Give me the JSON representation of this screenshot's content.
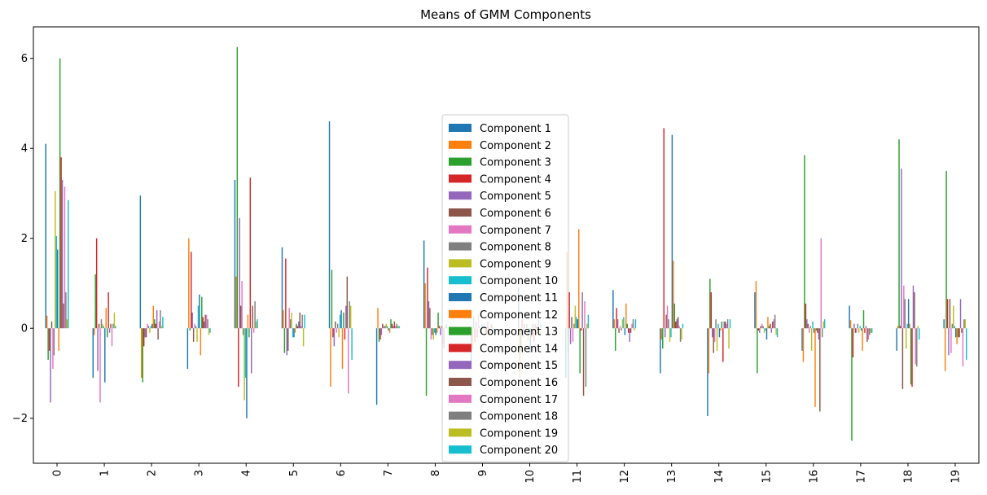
{
  "chart_data": {
    "type": "bar",
    "title": "Means of GMM Components",
    "xlabel": "",
    "ylabel": "",
    "categories": [
      "0",
      "1",
      "2",
      "3",
      "4",
      "5",
      "6",
      "7",
      "8",
      "9",
      "10",
      "11",
      "12",
      "13",
      "14",
      "15",
      "16",
      "17",
      "18",
      "19"
    ],
    "ylim": [
      -3.0,
      6.7
    ],
    "yticks": [
      -2,
      0,
      2,
      4,
      6
    ],
    "grid": false,
    "legend_position": "center",
    "colors": [
      "#1f77b4",
      "#ff7f0e",
      "#2ca02c",
      "#d62728",
      "#9467bd",
      "#8c564b",
      "#e377c2",
      "#7f7f7f",
      "#bcbd22",
      "#17becf"
    ],
    "series": [
      {
        "name": "Component 1",
        "values": [
          4.1,
          -1.1,
          2.95,
          -0.9,
          3.3,
          1.8,
          4.6,
          -1.7,
          1.95,
          -0.8,
          0.9,
          -1.1,
          0.85,
          -1.0,
          -1.95,
          0.8,
          -0.5,
          0.5,
          -0.5,
          0.2
        ]
      },
      {
        "name": "Component 2",
        "values": [
          0.28,
          -0.15,
          -1.1,
          2.0,
          1.15,
          0.4,
          -1.3,
          0.45,
          1.0,
          -0.45,
          -1.1,
          1.7,
          0.2,
          -0.25,
          -1.0,
          1.05,
          -0.75,
          0.18,
          0.05,
          -0.95
        ]
      },
      {
        "name": "Component 3",
        "values": [
          -0.7,
          1.2,
          -1.2,
          -0.05,
          6.25,
          -0.55,
          1.3,
          -0.3,
          -1.5,
          0.25,
          -0.5,
          -0.55,
          -0.5,
          -0.45,
          1.1,
          -1.0,
          3.85,
          -2.5,
          4.2,
          3.5
        ]
      },
      {
        "name": "Component 4",
        "values": [
          -0.5,
          2.0,
          -0.4,
          1.7,
          -1.3,
          1.55,
          -0.2,
          -0.25,
          1.35,
          -0.3,
          0.2,
          0.8,
          0.45,
          4.45,
          0.8,
          -0.05,
          0.55,
          -0.65,
          0.05,
          0.65
        ]
      },
      {
        "name": "Component 5",
        "values": [
          -1.65,
          -0.95,
          -0.2,
          0.35,
          2.45,
          -0.6,
          -0.4,
          -0.15,
          0.6,
          0.15,
          -0.2,
          -0.35,
          0.2,
          -0.2,
          -0.2,
          -0.1,
          0.2,
          0.1,
          3.55,
          -0.6
        ]
      },
      {
        "name": "Component 6",
        "values": [
          0.15,
          0.1,
          -0.2,
          -0.3,
          0.5,
          -0.5,
          0.15,
          0.1,
          0.45,
          -0.2,
          0.1,
          0.25,
          -0.1,
          0.3,
          -0.55,
          0.05,
          0.1,
          -0.1,
          -1.35,
          0.65
        ]
      },
      {
        "name": "Component 7",
        "values": [
          -0.9,
          -1.65,
          0.1,
          0.1,
          1.05,
          0.45,
          -0.1,
          0.05,
          -0.25,
          0.3,
          -0.1,
          -0.3,
          0.05,
          0.5,
          -0.3,
          0.1,
          -0.1,
          -0.1,
          0.95,
          -0.55
        ]
      },
      {
        "name": "Component 8",
        "values": [
          -0.6,
          0.2,
          0.05,
          0.05,
          -0.15,
          0.2,
          0.1,
          0.05,
          -0.15,
          0.05,
          0.1,
          0.1,
          -0.05,
          0.2,
          0.2,
          0.05,
          0.05,
          0.1,
          0.65,
          0.1
        ]
      },
      {
        "name": "Component 9",
        "values": [
          3.05,
          0.1,
          -0.1,
          -0.3,
          -1.6,
          0.35,
          -0.2,
          0.1,
          -0.25,
          -0.1,
          -0.3,
          0.5,
          0.2,
          -0.3,
          -0.5,
          -0.1,
          -0.5,
          -0.1,
          -0.45,
          0.5
        ]
      },
      {
        "name": "Component 10",
        "values": [
          2.05,
          0.05,
          0.05,
          0.5,
          -1.1,
          -0.2,
          0.3,
          0.05,
          -0.1,
          0.1,
          -0.1,
          0.25,
          0.25,
          -0.2,
          0.1,
          -0.05,
          0.15,
          0.05,
          0.1,
          0.05
        ]
      },
      {
        "name": "Component 11",
        "values": [
          1.75,
          -1.2,
          0.1,
          0.75,
          -2.0,
          -0.2,
          0.4,
          -0.05,
          -0.15,
          0.05,
          -0.55,
          0.2,
          -0.15,
          4.3,
          -0.2,
          -0.25,
          -0.1,
          -0.05,
          0.65,
          -0.2
        ]
      },
      {
        "name": "Component 12",
        "values": [
          -0.5,
          0.45,
          0.5,
          -0.6,
          0.3,
          -0.1,
          -0.9,
          -0.1,
          -0.1,
          0.1,
          -0.2,
          2.2,
          0.55,
          1.5,
          -0.05,
          0.25,
          -1.75,
          -0.5,
          0.1,
          -0.35
        ]
      },
      {
        "name": "Component 13",
        "values": [
          6.0,
          -0.2,
          0.2,
          0.7,
          -0.2,
          0.1,
          0.35,
          0.2,
          0.35,
          -0.1,
          0.1,
          -1.0,
          0.1,
          0.55,
          0.15,
          0.05,
          -0.05,
          0.4,
          -1.25,
          -0.2
        ]
      },
      {
        "name": "Component 14",
        "values": [
          3.8,
          0.8,
          0.1,
          0.25,
          3.35,
          0.05,
          -0.25,
          0.1,
          0.05,
          -0.1,
          -0.3,
          -0.05,
          -0.1,
          0.15,
          -0.75,
          0.1,
          -0.1,
          -0.1,
          -1.3,
          -0.2
        ]
      },
      {
        "name": "Component 15",
        "values": [
          3.3,
          -0.1,
          0.4,
          0.15,
          -1.0,
          0.15,
          0.5,
          0.05,
          -0.15,
          0.15,
          0.1,
          0.8,
          -0.3,
          0.2,
          0.15,
          -0.1,
          -0.25,
          0.05,
          0.95,
          0.65
        ]
      },
      {
        "name": "Component 16",
        "values": [
          0.55,
          0.1,
          -0.25,
          0.3,
          0.5,
          0.35,
          1.15,
          0.15,
          0.05,
          -0.15,
          0.05,
          -1.5,
          -0.1,
          0.25,
          0.15,
          0.15,
          -1.85,
          -0.3,
          0.8,
          -0.1
        ]
      },
      {
        "name": "Component 17",
        "values": [
          3.15,
          -0.4,
          0.15,
          0.3,
          -0.1,
          0.05,
          -1.45,
          0.05,
          -0.35,
          -0.1,
          0.05,
          0.6,
          0.1,
          0.05,
          0.1,
          0.2,
          2.0,
          -0.25,
          -0.8,
          -0.85
        ]
      },
      {
        "name": "Component 18",
        "values": [
          0.8,
          0.1,
          0.4,
          0.2,
          0.6,
          0.3,
          0.6,
          0.1,
          -0.45,
          0.1,
          0.2,
          -1.3,
          0.2,
          -0.3,
          0.2,
          0.3,
          -0.2,
          -0.15,
          -0.85,
          0.2
        ]
      },
      {
        "name": "Component 19",
        "values": [
          0.2,
          0.35,
          0.05,
          -0.15,
          0.15,
          -0.4,
          0.5,
          0.05,
          0.05,
          0.05,
          -0.15,
          0.1,
          -0.05,
          -0.25,
          -0.45,
          -0.15,
          0.15,
          -0.1,
          0.05,
          0.2
        ]
      },
      {
        "name": "Component 20",
        "values": [
          2.85,
          0.05,
          0.25,
          -0.1,
          0.2,
          0.3,
          -0.7,
          0.05,
          0.1,
          -0.1,
          0.1,
          0.3,
          0.2,
          0.1,
          0.2,
          -0.2,
          0.2,
          -0.1,
          -0.25,
          -0.7
        ]
      }
    ]
  }
}
